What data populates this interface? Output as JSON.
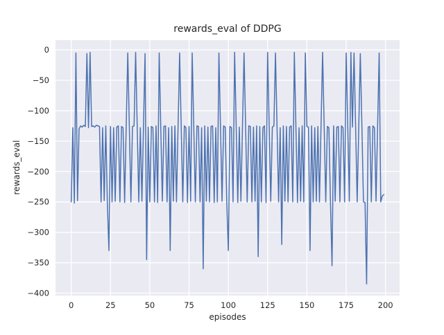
{
  "chart_data": {
    "type": "line",
    "title": "rewards_eval of DDPG",
    "xlabel": "episodes",
    "ylabel": "rewards_eval",
    "grid": true,
    "legend_position": "none",
    "xlim": [
      -10,
      209
    ],
    "ylim": [
      -404,
      16
    ],
    "x_start": 0,
    "x_step": 1,
    "xticks": [
      {
        "v": 0,
        "label": "0"
      },
      {
        "v": 25,
        "label": "25"
      },
      {
        "v": 50,
        "label": "50"
      },
      {
        "v": 75,
        "label": "75"
      },
      {
        "v": 100,
        "label": "100"
      },
      {
        "v": 125,
        "label": "125"
      },
      {
        "v": 150,
        "label": "150"
      },
      {
        "v": 175,
        "label": "175"
      },
      {
        "v": 200,
        "label": "200"
      }
    ],
    "yticks": [
      {
        "v": 0,
        "label": "0"
      },
      {
        "v": -50,
        "label": "−50"
      },
      {
        "v": -100,
        "label": "−100"
      },
      {
        "v": -150,
        "label": "−150"
      },
      {
        "v": -200,
        "label": "−200"
      },
      {
        "v": -250,
        "label": "−250"
      },
      {
        "v": -300,
        "label": "−300"
      },
      {
        "v": -350,
        "label": "−350"
      },
      {
        "v": -400,
        "label": "−400"
      }
    ],
    "colors": {
      "line": "#4c72b0",
      "plot_background": "#eaeaf2",
      "grid": "#ffffff",
      "text": "#262626",
      "figure_background": "#ffffff"
    },
    "values": [
      -250,
      -128,
      -252,
      -5,
      -248,
      -130,
      -125,
      -127,
      -124,
      -126,
      -6,
      -128,
      -4,
      -126,
      -125,
      -127,
      -124,
      -125,
      -126,
      -250,
      -128,
      -248,
      -125,
      -252,
      -330,
      -126,
      -250,
      -128,
      -249,
      -127,
      -125,
      -250,
      -126,
      -128,
      -251,
      -125,
      -5,
      -127,
      -250,
      -126,
      -125,
      -4,
      -126,
      -250,
      -128,
      -249,
      -125,
      -6,
      -345,
      -127,
      -250,
      -126,
      -128,
      -250,
      -125,
      -251,
      -5,
      -127,
      -249,
      -126,
      -125,
      -250,
      -128,
      -330,
      -126,
      -249,
      -125,
      -250,
      -127,
      -5,
      -126,
      -250,
      -125,
      -128,
      -251,
      -126,
      -249,
      -5,
      -127,
      -250,
      -125,
      -126,
      -250,
      -128,
      -360,
      -125,
      -249,
      -127,
      -250,
      -126,
      -125,
      -251,
      -128,
      -250,
      -5,
      -126,
      -249,
      -125,
      -127,
      -250,
      -330,
      -126,
      -128,
      -250,
      -4,
      -125,
      -251,
      -127,
      -249,
      -126,
      -5,
      -128,
      -250,
      -125,
      -126,
      -250,
      -127,
      -249,
      -125,
      -340,
      -126,
      -250,
      -128,
      -125,
      -251,
      -4,
      -126,
      -249,
      -127,
      -125,
      -5,
      -126,
      -250,
      -128,
      -320,
      -125,
      -249,
      -126,
      -250,
      -127,
      -125,
      -250,
      -4,
      -126,
      -251,
      -128,
      -249,
      -125,
      -250,
      -5,
      -126,
      -127,
      -330,
      -125,
      -250,
      -128,
      -249,
      -126,
      -250,
      -125,
      -4,
      -127,
      -250,
      -126,
      -128,
      -251,
      -355,
      -125,
      -249,
      -127,
      -126,
      -250,
      -125,
      -128,
      -250,
      -5,
      -126,
      -249,
      -4,
      -127,
      -5,
      -126,
      -250,
      -128,
      -6,
      -125,
      -250,
      -251,
      -385,
      -127,
      -126,
      -250,
      -125,
      -128,
      -249,
      -126,
      -5,
      -250,
      -240,
      -238
    ]
  }
}
